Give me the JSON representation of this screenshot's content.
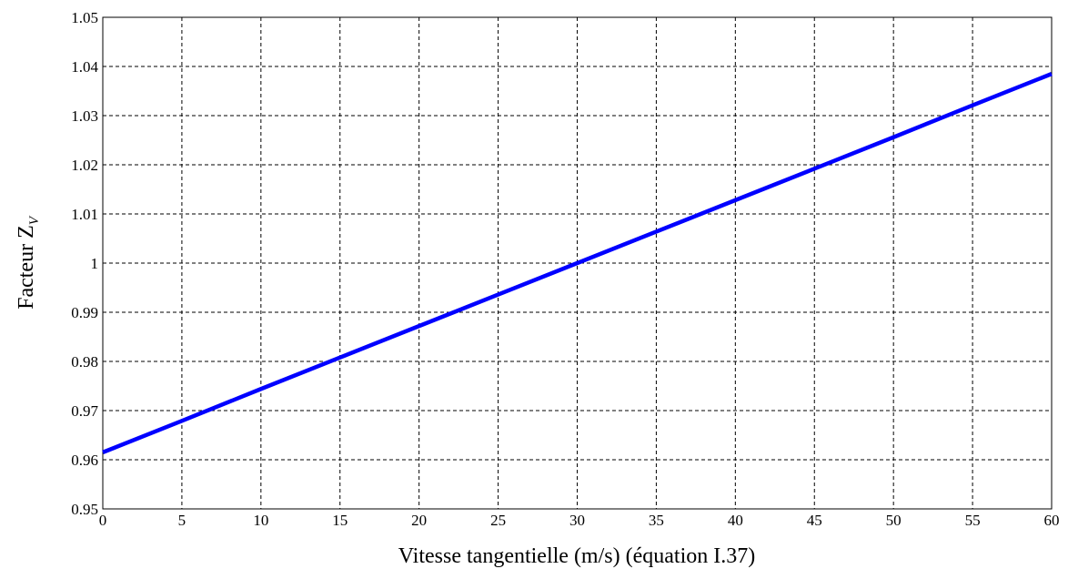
{
  "chart_data": {
    "type": "line",
    "ylabel": "Facteur Z",
    "ylabel_subscript": "V",
    "xlabel": "Vitesse tangentielle (m/s) (équation I.37)",
    "x": [
      0,
      5,
      10,
      15,
      20,
      25,
      30,
      35,
      40,
      45,
      50,
      55,
      60
    ],
    "series": [
      {
        "name": "Zv",
        "color": "#0000ff",
        "values": [
          0.9615,
          0.9679,
          0.9744,
          0.9808,
          0.9872,
          0.9936,
          1.0,
          1.0064,
          1.0128,
          1.0192,
          1.0256,
          1.0321,
          1.0385
        ]
      }
    ],
    "xlim": [
      0,
      60
    ],
    "xticks": [
      0,
      5,
      10,
      15,
      20,
      25,
      30,
      35,
      40,
      45,
      50,
      55,
      60
    ],
    "ylim": [
      0.95,
      1.05
    ],
    "yticks": [
      0.95,
      0.96,
      0.97,
      0.98,
      0.99,
      1,
      1.01,
      1.02,
      1.03,
      1.04,
      1.05
    ],
    "grid": true
  }
}
